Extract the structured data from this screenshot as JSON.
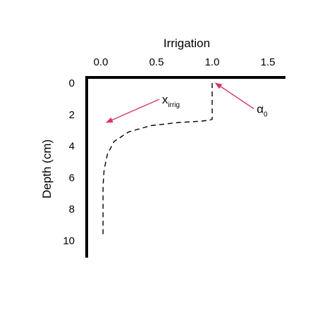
{
  "chart_data": {
    "type": "line",
    "title": "",
    "xlabel": "Irrigation",
    "ylabel": "Depth (cm)",
    "x_axis_position": "top",
    "y_axis_inverted": true,
    "xlim": [
      -0.05,
      1.65
    ],
    "ylim": [
      0,
      11
    ],
    "xticks": [
      0.0,
      0.5,
      1.0,
      1.5
    ],
    "xtick_labels": [
      "0.0",
      "0.5",
      "1.0",
      "1.5"
    ],
    "yticks": [
      0,
      2,
      4,
      6,
      8,
      10
    ],
    "ytick_labels": [
      "0",
      "2",
      "4",
      "6",
      "8",
      "10"
    ],
    "grid": false,
    "series": [
      {
        "style": "dashed",
        "color": "#000000",
        "x": [
          1.0,
          1.0,
          0.98,
          0.9,
          0.7,
          0.45,
          0.25,
          0.12,
          0.06,
          0.03,
          0.02,
          0.02,
          0.02,
          0.02
        ],
        "y": [
          0.0,
          2.3,
          2.35,
          2.42,
          2.5,
          2.7,
          3.1,
          3.7,
          4.5,
          5.5,
          6.5,
          7.5,
          8.5,
          9.7
        ]
      }
    ],
    "annotations": [
      {
        "base": "x",
        "subscript": "irrig",
        "color": "#d6336c",
        "points_to": [
          0.05,
          2.5
        ],
        "text_at": [
          0.55,
          1.3
        ]
      },
      {
        "base": "α",
        "subscript": "0",
        "color": "#d6336c",
        "points_to": [
          1.03,
          0.0
        ],
        "text_at": [
          1.4,
          1.9
        ]
      }
    ]
  }
}
